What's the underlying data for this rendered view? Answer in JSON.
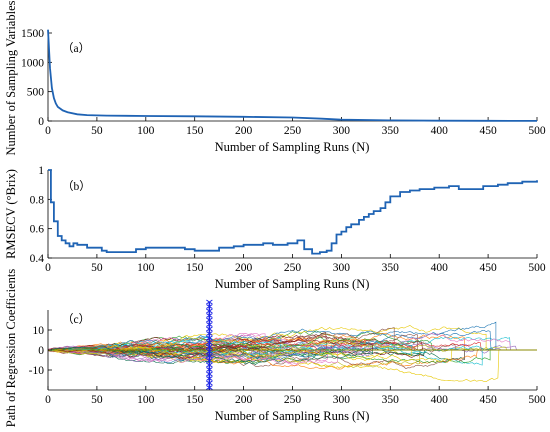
{
  "chart_data": [
    {
      "type": "line",
      "panel_label": "（a）",
      "xlabel": "Number of Sampling Runs (N)",
      "ylabel": "Number of Sampling Variables",
      "xlim": [
        0,
        500
      ],
      "ylim": [
        0,
        1500
      ],
      "x_ticks": [
        0,
        50,
        100,
        150,
        200,
        250,
        300,
        350,
        400,
        450,
        500
      ],
      "y_ticks": [
        0,
        500,
        1000,
        1500
      ],
      "color": "#1f63b4",
      "series": [
        {
          "x": [
            0,
            2,
            4,
            6,
            8,
            10,
            15,
            20,
            30,
            40,
            60,
            100,
            150,
            200,
            250,
            280,
            300,
            350,
            400,
            450,
            500
          ],
          "values": [
            1557,
            900,
            560,
            390,
            300,
            240,
            180,
            150,
            115,
            100,
            92,
            85,
            80,
            72,
            60,
            40,
            22,
            10,
            5,
            3,
            2
          ]
        }
      ]
    },
    {
      "type": "line",
      "panel_label": "（b）",
      "xlabel": "Number of Sampling Runs (N)",
      "ylabel": "RMSECV (°Brix)",
      "xlim": [
        0,
        500
      ],
      "ylim": [
        0.4,
        1
      ],
      "x_ticks": [
        0,
        50,
        100,
        150,
        200,
        250,
        300,
        350,
        400,
        450,
        500
      ],
      "y_ticks": [
        0.4,
        0.6,
        0.8,
        1
      ],
      "y_tick_labels": [
        "0.4",
        "0.6",
        "0.8",
        "1"
      ],
      "color": "#1f63b4",
      "series": [
        {
          "x": [
            0,
            3,
            6,
            10,
            14,
            18,
            22,
            26,
            30,
            40,
            50,
            55,
            60,
            80,
            90,
            100,
            120,
            140,
            150,
            165,
            175,
            190,
            200,
            220,
            230,
            245,
            255,
            262,
            270,
            278,
            285,
            290,
            295,
            300,
            305,
            310,
            318,
            323,
            328,
            333,
            340,
            345,
            350,
            360,
            370,
            380,
            395,
            410,
            420,
            445,
            460,
            470,
            485,
            500
          ],
          "values": [
            1.0,
            0.78,
            0.65,
            0.55,
            0.52,
            0.5,
            0.48,
            0.5,
            0.49,
            0.47,
            0.47,
            0.45,
            0.44,
            0.44,
            0.46,
            0.47,
            0.47,
            0.46,
            0.45,
            0.45,
            0.47,
            0.48,
            0.49,
            0.5,
            0.49,
            0.5,
            0.52,
            0.46,
            0.43,
            0.44,
            0.45,
            0.5,
            0.56,
            0.58,
            0.61,
            0.63,
            0.66,
            0.68,
            0.7,
            0.72,
            0.74,
            0.78,
            0.82,
            0.85,
            0.86,
            0.87,
            0.88,
            0.89,
            0.87,
            0.89,
            0.9,
            0.91,
            0.92,
            0.93
          ]
        }
      ]
    },
    {
      "type": "line",
      "panel_label": "（c）",
      "xlabel": "Number of Sampling Runs (N)",
      "ylabel": "Path of Regression Coefficients",
      "xlim": [
        0,
        500
      ],
      "ylim": [
        -20,
        20
      ],
      "x_ticks": [
        0,
        50,
        100,
        150,
        200,
        250,
        300,
        350,
        400,
        450,
        500
      ],
      "y_ticks": [
        -10,
        0,
        10
      ],
      "optimal_run": 165,
      "marker_color": "#1a22e6",
      "zero_line_color": "#8a8a00",
      "colors": [
        "#1f77b4",
        "#d62728",
        "#2ca02c",
        "#ff7f0e",
        "#9467bd",
        "#8c564b",
        "#e377c2",
        "#17becf",
        "#bcbd22",
        "#e6c700",
        "#7f1d1d",
        "#0b6e4f"
      ]
    }
  ]
}
